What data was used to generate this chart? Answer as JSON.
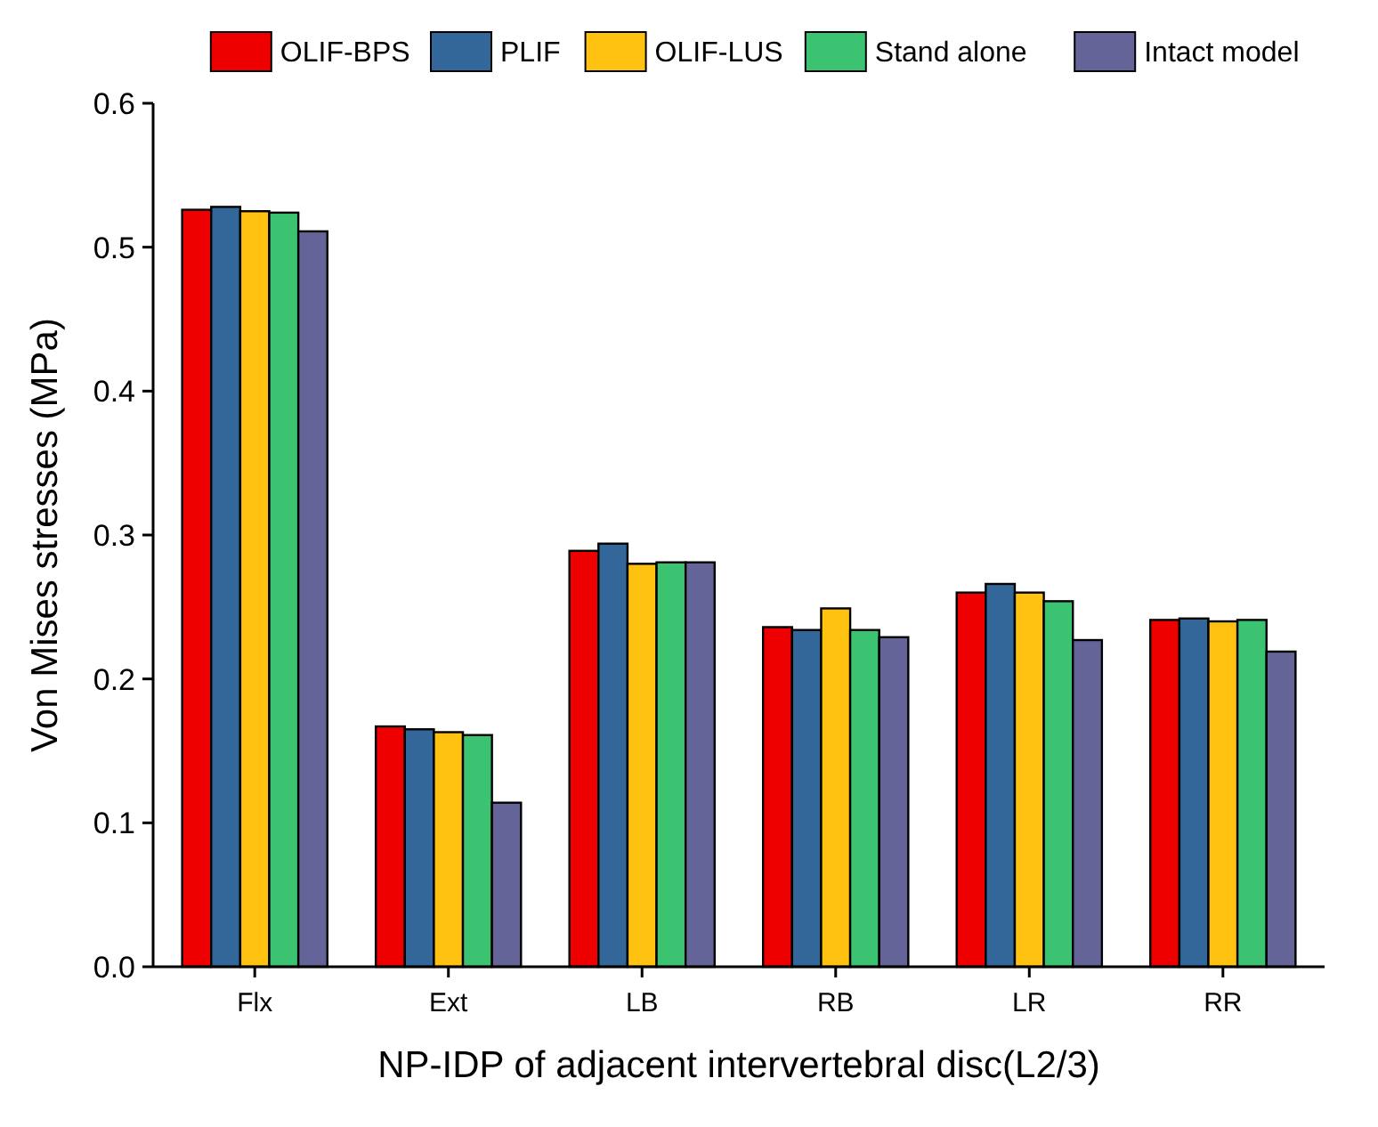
{
  "chart_data": {
    "type": "bar",
    "xlabel": "NP-IDP of adjacent intervertebral disc(L2/3)",
    "ylabel": "Von Mises stresses (MPa)",
    "categories": [
      "Flx",
      "Ext",
      "LB",
      "RB",
      "LR",
      "RR"
    ],
    "series": [
      {
        "name": "OLIF-BPS",
        "color": "#ee0000",
        "values": [
          0.526,
          0.167,
          0.289,
          0.236,
          0.26,
          0.241
        ]
      },
      {
        "name": "PLIF",
        "color": "#336699",
        "values": [
          0.528,
          0.165,
          0.294,
          0.234,
          0.266,
          0.242
        ]
      },
      {
        "name": "OLIF-LUS",
        "color": "#ffc211",
        "values": [
          0.525,
          0.163,
          0.28,
          0.249,
          0.26,
          0.24
        ]
      },
      {
        "name": "Stand alone",
        "color": "#3cc372",
        "values": [
          0.524,
          0.161,
          0.281,
          0.234,
          0.254,
          0.241
        ]
      },
      {
        "name": "Intact model",
        "color": "#646499",
        "values": [
          0.511,
          0.114,
          0.281,
          0.229,
          0.227,
          0.219
        ]
      }
    ],
    "ylim": [
      0,
      0.6
    ],
    "yticks": [
      "0.0",
      0.1,
      0.2,
      0.3,
      0.4,
      0.5,
      0.6
    ],
    "legend": "top",
    "grid": false
  }
}
